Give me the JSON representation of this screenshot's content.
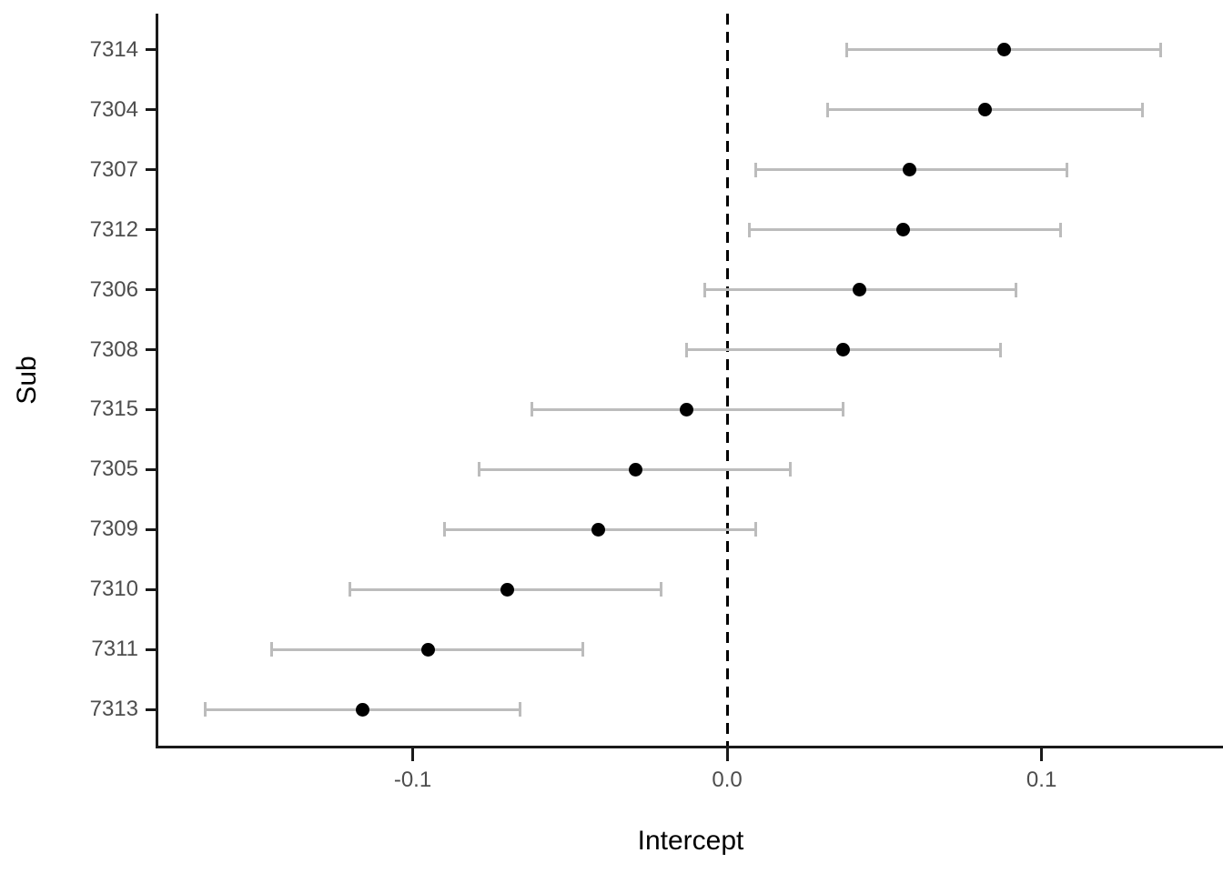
{
  "chart_data": {
    "type": "scatter",
    "subtype": "pointrange-caterpillar",
    "title": "",
    "xlabel": "Intercept",
    "ylabel": "Sub",
    "xlim": [
      -0.1809,
      0.1577
    ],
    "grid": false,
    "legend": "none",
    "x_ticks": [
      {
        "value": -0.1,
        "label": "-0.1"
      },
      {
        "value": 0.0,
        "label": "0.0"
      },
      {
        "value": 0.1,
        "label": "0.1"
      }
    ],
    "reference_line": {
      "x": 0.0,
      "style": "dashed"
    },
    "categories": [
      "7314",
      "7304",
      "7307",
      "7312",
      "7306",
      "7308",
      "7315",
      "7305",
      "7309",
      "7310",
      "7311",
      "7313"
    ],
    "points": [
      {
        "sub": "7314",
        "est": 0.088,
        "lo": 0.038,
        "hi": 0.138
      },
      {
        "sub": "7304",
        "est": 0.082,
        "lo": 0.032,
        "hi": 0.132
      },
      {
        "sub": "7307",
        "est": 0.058,
        "lo": 0.009,
        "hi": 0.108
      },
      {
        "sub": "7312",
        "est": 0.056,
        "lo": 0.007,
        "hi": 0.106
      },
      {
        "sub": "7306",
        "est": 0.042,
        "lo": -0.007,
        "hi": 0.092
      },
      {
        "sub": "7308",
        "est": 0.037,
        "lo": -0.013,
        "hi": 0.087
      },
      {
        "sub": "7315",
        "est": -0.013,
        "lo": -0.062,
        "hi": 0.037
      },
      {
        "sub": "7305",
        "est": -0.029,
        "lo": -0.079,
        "hi": 0.02
      },
      {
        "sub": "7309",
        "est": -0.041,
        "lo": -0.09,
        "hi": 0.009
      },
      {
        "sub": "7310",
        "est": -0.07,
        "lo": -0.12,
        "hi": -0.021
      },
      {
        "sub": "7311",
        "est": -0.095,
        "lo": -0.145,
        "hi": -0.046
      },
      {
        "sub": "7313",
        "est": -0.116,
        "lo": -0.166,
        "hi": -0.066
      }
    ]
  },
  "colors": {
    "background": "#ffffff",
    "error_bar": "#bcbcbc",
    "point": "#000000",
    "axis_line": "#1a1a1a",
    "tick_mark": "#1a1a1a",
    "tick_label": "#4d4d4d",
    "axis_title": "#000000",
    "reference_line": "#000000"
  }
}
